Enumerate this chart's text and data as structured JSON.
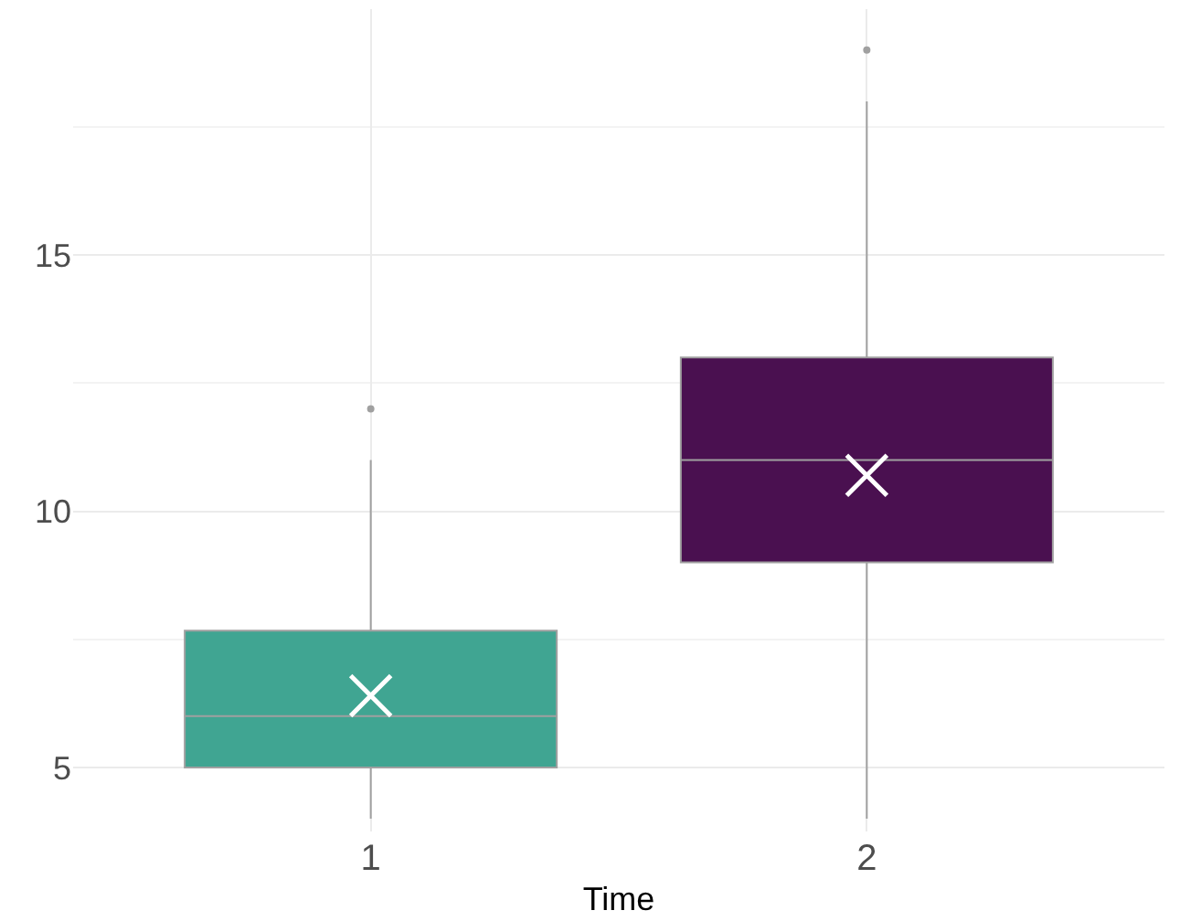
{
  "chart_data": {
    "type": "box",
    "xlabel": "Time",
    "categories": [
      "1",
      "2"
    ],
    "boxes": [
      {
        "low": 4,
        "q1": 5,
        "median": 6,
        "q3": 7.67,
        "high": 11,
        "mean": 6.4,
        "outliers": [
          12
        ]
      },
      {
        "low": 4,
        "q1": 9,
        "median": 11,
        "q3": 13,
        "high": 18,
        "mean": 10.7,
        "outliers": [
          19
        ]
      }
    ],
    "colors": [
      "#40a592",
      "#4a1050"
    ],
    "ylim": [
      3.75,
      19.8
    ],
    "yticks": [
      5,
      10,
      15
    ],
    "grid": true,
    "marker": "cross"
  }
}
